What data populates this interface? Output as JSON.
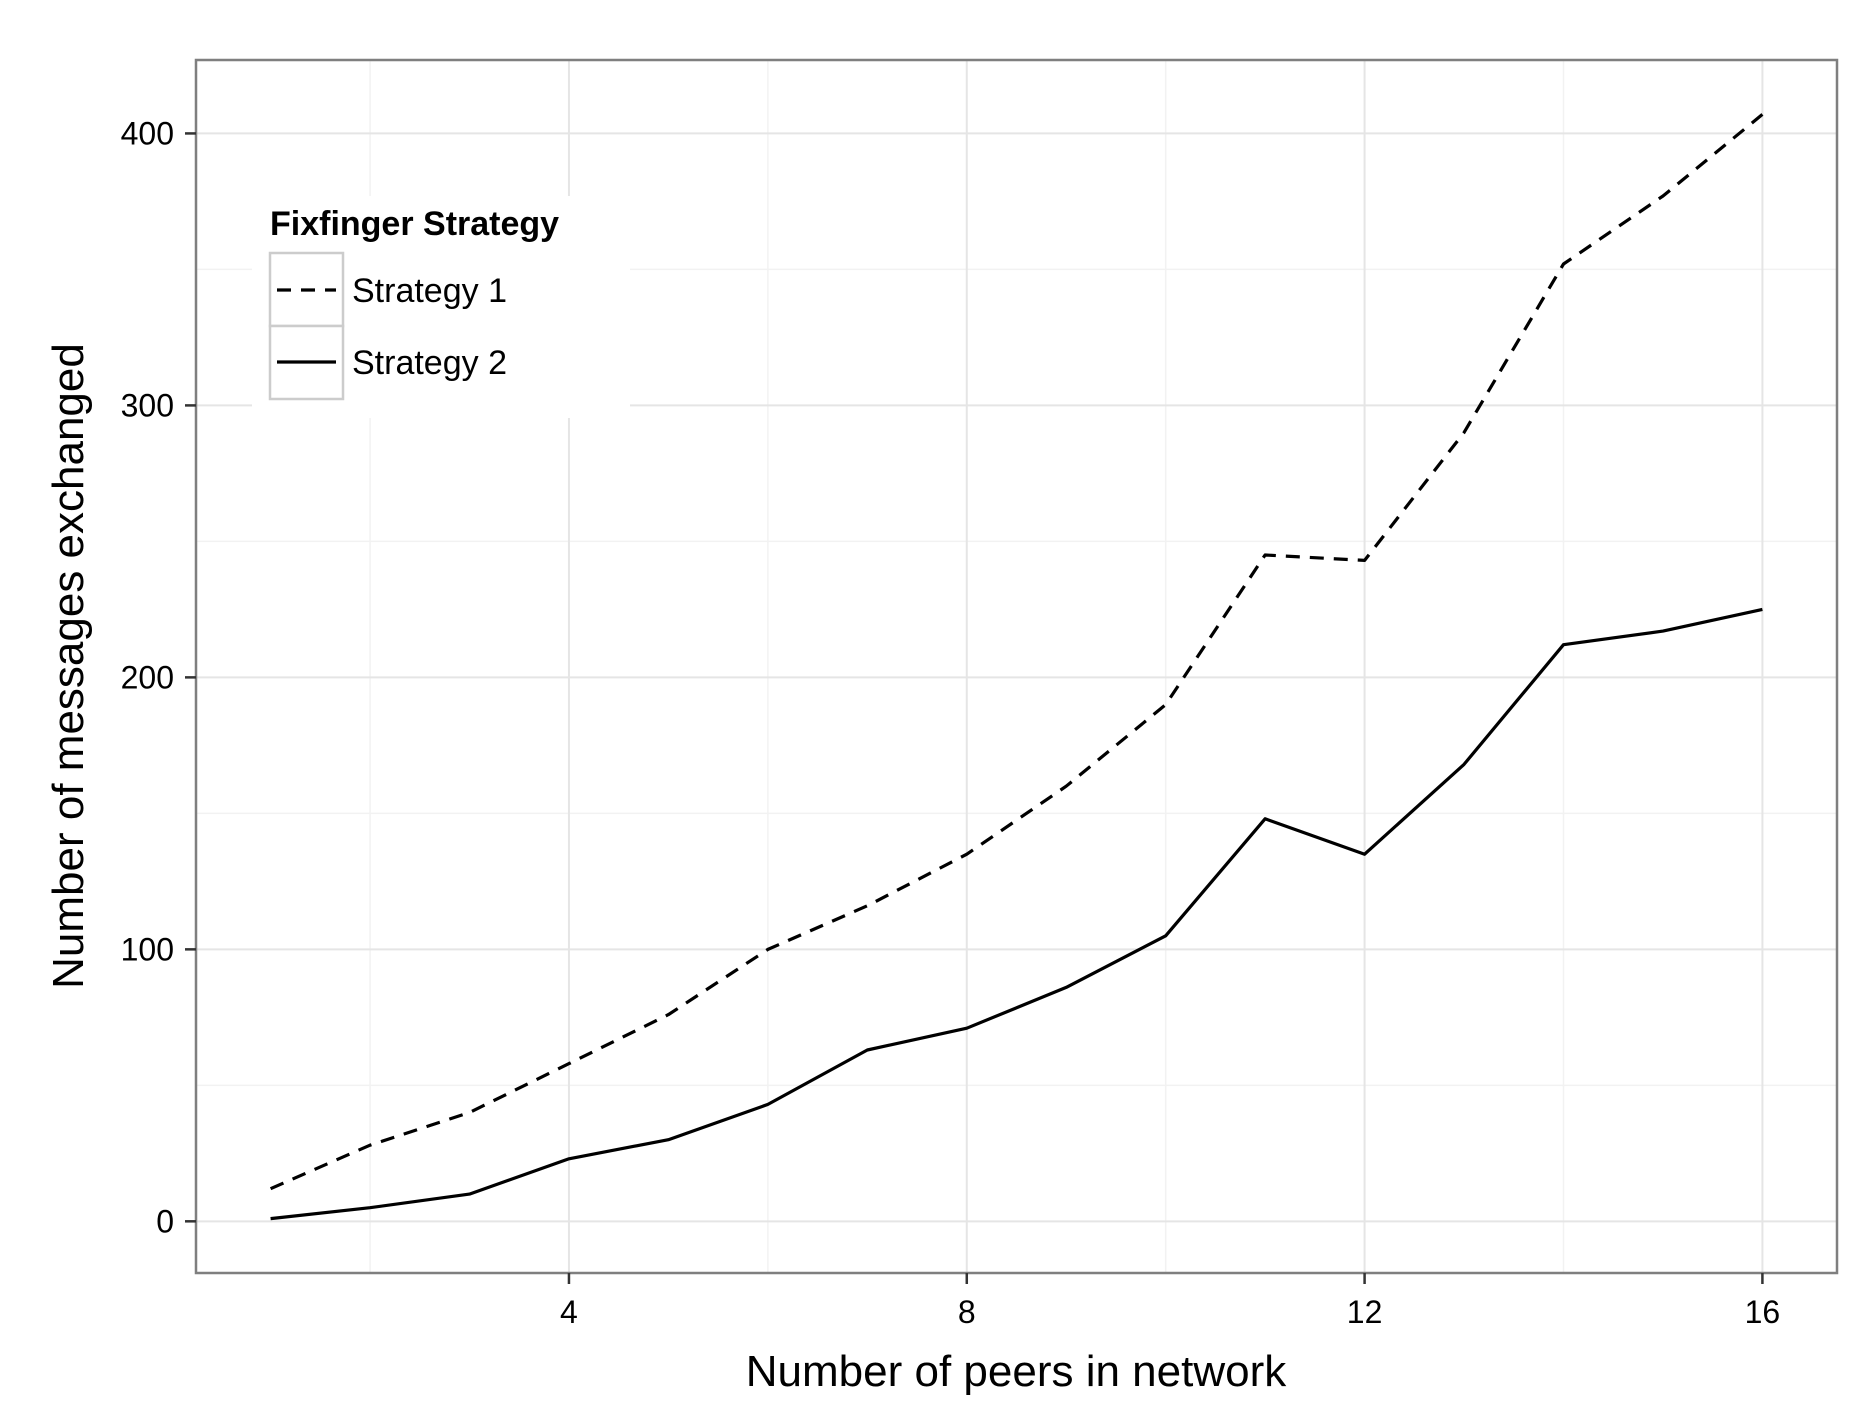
{
  "chart_data": {
    "type": "line",
    "title": "",
    "xlabel": "Number of peers in network",
    "ylabel": "Number of messages exchanged",
    "x": [
      1,
      2,
      3,
      4,
      5,
      6,
      7,
      8,
      9,
      10,
      11,
      12,
      13,
      14,
      15,
      16
    ],
    "xlim": [
      0.25,
      16.75
    ],
    "ylim": [
      -19,
      427
    ],
    "xticks": [
      4,
      8,
      12,
      16
    ],
    "yticks": [
      0,
      100,
      200,
      300,
      400
    ],
    "grid": true,
    "legend": {
      "title": "Fixfinger Strategy",
      "placement": "top-left"
    },
    "series": [
      {
        "name": "Strategy 1",
        "linestyle": "dashed",
        "color": "#000000",
        "values": [
          12,
          28,
          40,
          58,
          76,
          100,
          116,
          135,
          160,
          190,
          245,
          243,
          290,
          352,
          377,
          407
        ]
      },
      {
        "name": "Strategy 2",
        "linestyle": "solid",
        "color": "#000000",
        "values": [
          1,
          5,
          10,
          23,
          30,
          43,
          63,
          71,
          86,
          105,
          148,
          135,
          168,
          212,
          217,
          225
        ]
      }
    ]
  }
}
